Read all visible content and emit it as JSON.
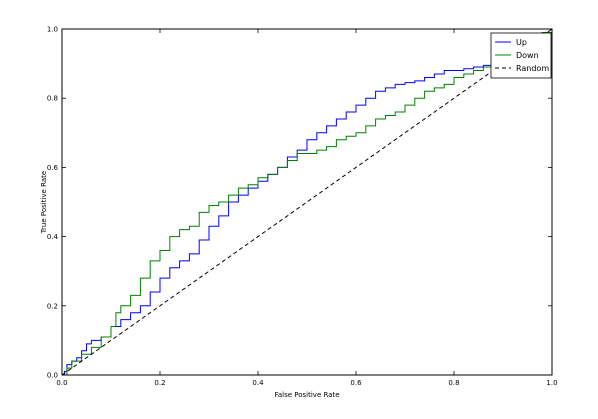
{
  "chart_data": {
    "type": "line",
    "title": "",
    "xlabel": "False Positive Rate",
    "ylabel": "True Positive Rate",
    "xlim": [
      0.0,
      1.0
    ],
    "ylim": [
      0.0,
      1.0
    ],
    "x_ticks": [
      "0.0",
      "0.2",
      "0.4",
      "0.6",
      "0.8",
      "1.0"
    ],
    "y_ticks": [
      "0.0",
      "0.2",
      "0.4",
      "0.6",
      "0.8",
      "1.0"
    ],
    "grid": false,
    "legend_position": "top-right",
    "series": [
      {
        "name": "Up",
        "color": "#0000ff",
        "style": "steps",
        "points": [
          [
            0,
            0
          ],
          [
            0.005,
            0.01
          ],
          [
            0.01,
            0.03
          ],
          [
            0.02,
            0.04
          ],
          [
            0.03,
            0.05
          ],
          [
            0.04,
            0.07
          ],
          [
            0.05,
            0.09
          ],
          [
            0.06,
            0.1
          ],
          [
            0.08,
            0.11
          ],
          [
            0.1,
            0.14
          ],
          [
            0.12,
            0.16
          ],
          [
            0.14,
            0.18
          ],
          [
            0.16,
            0.2
          ],
          [
            0.18,
            0.24
          ],
          [
            0.2,
            0.28
          ],
          [
            0.22,
            0.31
          ],
          [
            0.24,
            0.33
          ],
          [
            0.26,
            0.35
          ],
          [
            0.28,
            0.39
          ],
          [
            0.3,
            0.43
          ],
          [
            0.32,
            0.46
          ],
          [
            0.34,
            0.5
          ],
          [
            0.36,
            0.52
          ],
          [
            0.38,
            0.54
          ],
          [
            0.4,
            0.56
          ],
          [
            0.42,
            0.58
          ],
          [
            0.44,
            0.6
          ],
          [
            0.46,
            0.63
          ],
          [
            0.48,
            0.65
          ],
          [
            0.5,
            0.68
          ],
          [
            0.52,
            0.7
          ],
          [
            0.54,
            0.72
          ],
          [
            0.56,
            0.74
          ],
          [
            0.58,
            0.76
          ],
          [
            0.6,
            0.78
          ],
          [
            0.62,
            0.8
          ],
          [
            0.64,
            0.82
          ],
          [
            0.66,
            0.83
          ],
          [
            0.68,
            0.84
          ],
          [
            0.7,
            0.845
          ],
          [
            0.72,
            0.85
          ],
          [
            0.74,
            0.86
          ],
          [
            0.76,
            0.87
          ],
          [
            0.78,
            0.88
          ],
          [
            0.8,
            0.88
          ],
          [
            0.82,
            0.885
          ],
          [
            0.84,
            0.89
          ],
          [
            0.86,
            0.895
          ],
          [
            0.88,
            0.9
          ],
          [
            0.9,
            0.91
          ],
          [
            0.92,
            0.93
          ],
          [
            0.94,
            0.95
          ],
          [
            0.96,
            0.97
          ],
          [
            0.98,
            0.99
          ],
          [
            1.0,
            1.0
          ]
        ]
      },
      {
        "name": "Down",
        "color": "#008000",
        "style": "steps",
        "points": [
          [
            0,
            0
          ],
          [
            0.01,
            0.02
          ],
          [
            0.02,
            0.04
          ],
          [
            0.04,
            0.06
          ],
          [
            0.06,
            0.08
          ],
          [
            0.08,
            0.11
          ],
          [
            0.1,
            0.14
          ],
          [
            0.11,
            0.18
          ],
          [
            0.12,
            0.2
          ],
          [
            0.14,
            0.23
          ],
          [
            0.16,
            0.28
          ],
          [
            0.18,
            0.33
          ],
          [
            0.2,
            0.36
          ],
          [
            0.22,
            0.4
          ],
          [
            0.24,
            0.42
          ],
          [
            0.26,
            0.43
          ],
          [
            0.28,
            0.47
          ],
          [
            0.3,
            0.49
          ],
          [
            0.32,
            0.5
          ],
          [
            0.34,
            0.52
          ],
          [
            0.36,
            0.54
          ],
          [
            0.38,
            0.55
          ],
          [
            0.4,
            0.57
          ],
          [
            0.42,
            0.58
          ],
          [
            0.44,
            0.6
          ],
          [
            0.46,
            0.62
          ],
          [
            0.48,
            0.64
          ],
          [
            0.5,
            0.64
          ],
          [
            0.52,
            0.65
          ],
          [
            0.54,
            0.66
          ],
          [
            0.56,
            0.68
          ],
          [
            0.58,
            0.69
          ],
          [
            0.6,
            0.7
          ],
          [
            0.62,
            0.72
          ],
          [
            0.64,
            0.74
          ],
          [
            0.66,
            0.75
          ],
          [
            0.68,
            0.76
          ],
          [
            0.7,
            0.78
          ],
          [
            0.72,
            0.8
          ],
          [
            0.74,
            0.82
          ],
          [
            0.76,
            0.83
          ],
          [
            0.78,
            0.84
          ],
          [
            0.8,
            0.86
          ],
          [
            0.82,
            0.87
          ],
          [
            0.84,
            0.88
          ],
          [
            0.86,
            0.89
          ],
          [
            0.88,
            0.91
          ],
          [
            0.9,
            0.92
          ],
          [
            0.92,
            0.94
          ],
          [
            0.94,
            0.96
          ],
          [
            0.96,
            0.97
          ],
          [
            0.98,
            0.99
          ],
          [
            1.0,
            1.0
          ]
        ]
      },
      {
        "name": "Random",
        "color": "#000000",
        "style": "dashed",
        "points": [
          [
            0,
            0
          ],
          [
            1,
            1
          ]
        ]
      }
    ]
  }
}
